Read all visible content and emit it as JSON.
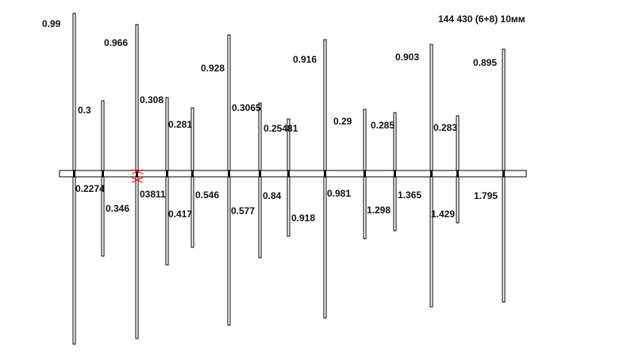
{
  "title": "144 430 (6+8) 10мм",
  "colors": {
    "line": "#000000",
    "marker": "#ff0000",
    "background": "#ffffff"
  },
  "elements": [
    {
      "id": "e1",
      "length": "0.99",
      "spacing": "0.2274"
    },
    {
      "id": "e2",
      "length": "0.3",
      "spacing": "0.346"
    },
    {
      "id": "e3",
      "length": "0.966",
      "spacing": "03811"
    },
    {
      "id": "e4",
      "length": "0.308",
      "spacing": "0.417"
    },
    {
      "id": "e5",
      "length": "0.281",
      "spacing": "0.546"
    },
    {
      "id": "e6",
      "length": "0.928",
      "spacing": "0.577"
    },
    {
      "id": "e7",
      "length": "0.3065",
      "spacing": "0.84"
    },
    {
      "id": "e8",
      "length": "0.25481",
      "spacing": "0.918"
    },
    {
      "id": "e9",
      "length": "0.916",
      "spacing": "0.981"
    },
    {
      "id": "e10",
      "length": "0.29",
      "spacing": "1.298"
    },
    {
      "id": "e11",
      "length": "0.285",
      "spacing": "1.365"
    },
    {
      "id": "e12",
      "length": "0.903",
      "spacing": "1.429"
    },
    {
      "id": "e13",
      "length": "0.283",
      "spacing": ""
    },
    {
      "id": "e14",
      "length": "0.895",
      "spacing": "1.795"
    }
  ]
}
